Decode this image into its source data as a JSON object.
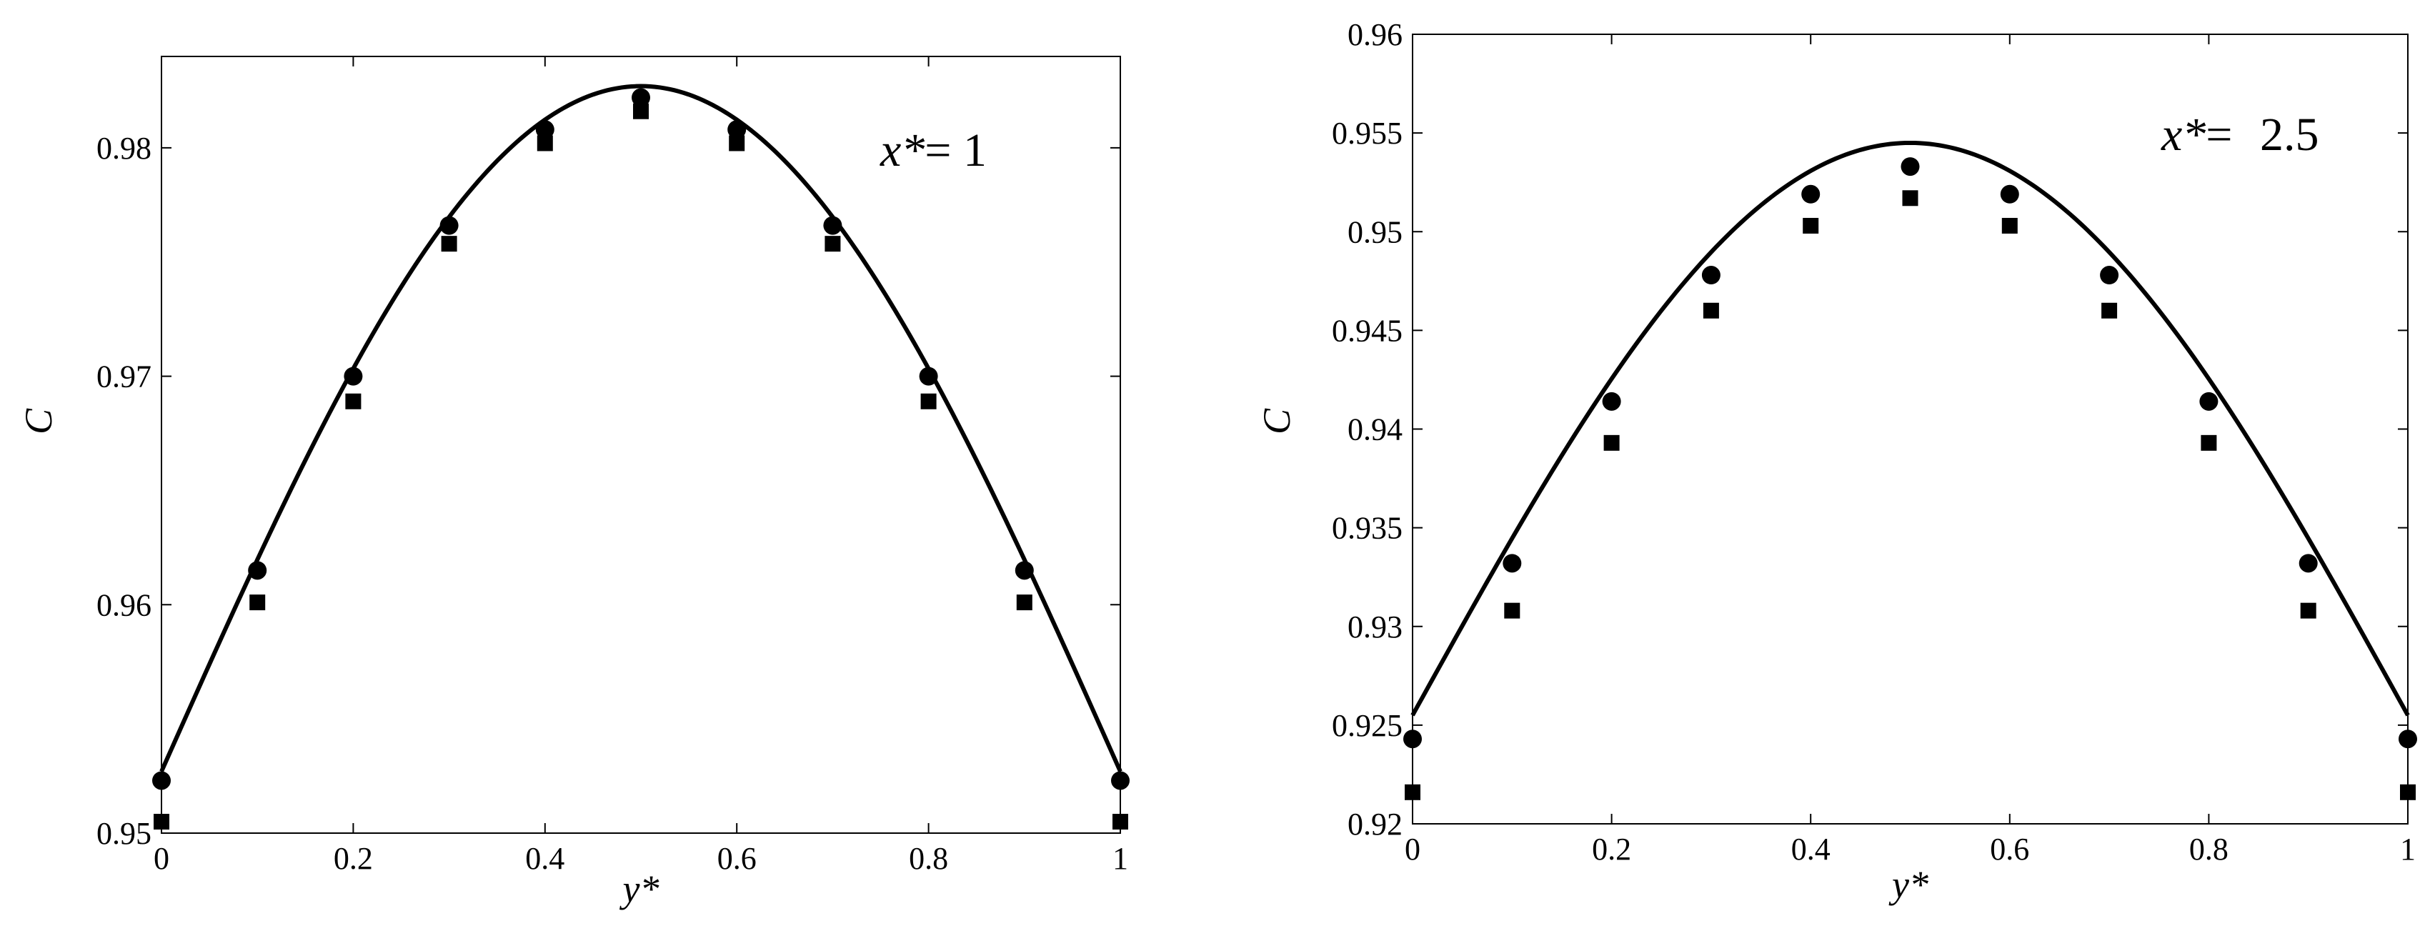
{
  "chart_data": [
    {
      "type": "line",
      "annotation": {
        "var": "x*",
        "eq": "= ",
        "value": "1"
      },
      "xlabel": "y*",
      "ylabel": "C",
      "xlim": [
        0,
        1
      ],
      "ylim": [
        0.95,
        0.984
      ],
      "xticks": [
        0,
        0.2,
        0.4,
        0.6,
        0.8,
        1
      ],
      "xtick_labels": [
        "0",
        "0.2",
        "0.4",
        "0.6",
        "0.8",
        "1"
      ],
      "yticks": [
        0.95,
        0.96,
        0.97,
        0.98
      ],
      "ytick_labels": [
        "0.95",
        "0.96",
        "0.97",
        "0.98"
      ],
      "curve": {
        "style": "solid",
        "color": "#000000",
        "y_end": 0.9527,
        "y_peak": 0.9827
      },
      "series": [
        {
          "marker": "circle",
          "x": [
            0,
            0.1,
            0.2,
            0.3,
            0.4,
            0.5,
            0.6,
            0.7,
            0.8,
            0.9,
            1
          ],
          "y": [
            0.9523,
            0.9615,
            0.97,
            0.9766,
            0.9808,
            0.9822,
            0.9808,
            0.9766,
            0.97,
            0.9615,
            0.9523
          ]
        },
        {
          "marker": "square",
          "x": [
            0,
            0.1,
            0.2,
            0.3,
            0.4,
            0.5,
            0.6,
            0.7,
            0.8,
            0.9,
            1
          ],
          "y": [
            0.9505,
            0.9601,
            0.9689,
            0.9758,
            0.9802,
            0.9816,
            0.9802,
            0.9758,
            0.9689,
            0.9601,
            0.9505
          ]
        }
      ]
    },
    {
      "type": "line",
      "annotation": {
        "var": "x*",
        "eq": "= ",
        "value": "2.5"
      },
      "xlabel": "y*",
      "ylabel": "C",
      "xlim": [
        0,
        1
      ],
      "ylim": [
        0.92,
        0.96
      ],
      "xticks": [
        0,
        0.2,
        0.4,
        0.6,
        0.8,
        1
      ],
      "xtick_labels": [
        "0",
        "0.2",
        "0.4",
        "0.6",
        "0.8",
        "1"
      ],
      "yticks": [
        0.92,
        0.925,
        0.93,
        0.935,
        0.94,
        0.945,
        0.95,
        0.955,
        0.96
      ],
      "ytick_labels": [
        "0.92",
        "0.925",
        "0.93",
        "0.935",
        "0.94",
        "0.945",
        "0.95",
        "0.955",
        "0.96"
      ],
      "curve": {
        "style": "solid",
        "color": "#000000",
        "y_end": 0.9255,
        "y_peak": 0.9545
      },
      "series": [
        {
          "marker": "circle",
          "x": [
            0,
            0.1,
            0.2,
            0.3,
            0.4,
            0.5,
            0.6,
            0.7,
            0.8,
            0.9,
            1
          ],
          "y": [
            0.9243,
            0.9332,
            0.9414,
            0.9478,
            0.9519,
            0.9533,
            0.9519,
            0.9478,
            0.9414,
            0.9332,
            0.9243
          ]
        },
        {
          "marker": "square",
          "x": [
            0,
            0.1,
            0.2,
            0.3,
            0.4,
            0.5,
            0.6,
            0.7,
            0.8,
            0.9,
            1
          ],
          "y": [
            0.9216,
            0.9308,
            0.9393,
            0.946,
            0.9503,
            0.9517,
            0.9503,
            0.946,
            0.9393,
            0.9308,
            0.9216
          ]
        }
      ]
    }
  ]
}
